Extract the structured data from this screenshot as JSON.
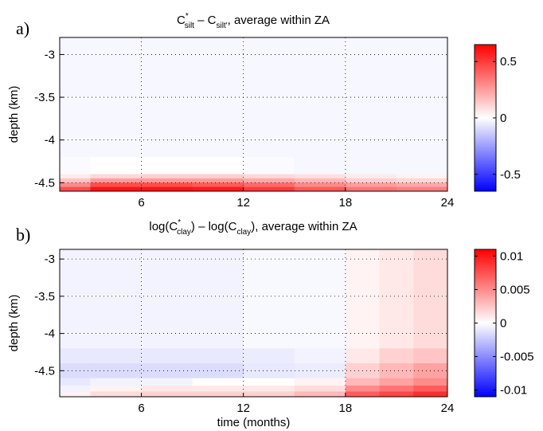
{
  "chart_data": [
    {
      "type": "heatmap",
      "label": "a)",
      "title_parts": [
        "C",
        "*",
        "silt",
        " – C",
        "silt'",
        ", average within ZA"
      ],
      "ylabel": "depth (km)",
      "xlim": [
        1.2,
        24
      ],
      "ylim": [
        -4.6,
        -2.8
      ],
      "xticks": [
        6,
        12,
        18,
        24
      ],
      "yticks": [
        -3,
        -3.5,
        -4,
        -4.5
      ],
      "grid": true,
      "x_edges": [
        1.2,
        3,
        6,
        9,
        12,
        15,
        18,
        21,
        24
      ],
      "y_edges": [
        -2.8,
        -4.2,
        -4.4,
        -4.45,
        -4.5,
        -4.55,
        -4.6
      ],
      "z": [
        [
          -0.02,
          -0.02,
          -0.02,
          -0.02,
          -0.02,
          -0.02,
          -0.02,
          -0.02
        ],
        [
          -0.01,
          0,
          0,
          0,
          -0.01,
          -0.02,
          -0.02,
          -0.02
        ],
        [
          0.05,
          0.1,
          0.12,
          0.12,
          0.1,
          0.08,
          0.05,
          0.03
        ],
        [
          0.15,
          0.25,
          0.25,
          0.25,
          0.22,
          0.18,
          0.12,
          0.1
        ],
        [
          0.3,
          0.45,
          0.45,
          0.42,
          0.38,
          0.3,
          0.25,
          0.22
        ],
        [
          0.45,
          0.6,
          0.6,
          0.58,
          0.5,
          0.42,
          0.35,
          0.32
        ]
      ],
      "clim": [
        -0.65,
        0.65
      ],
      "cticks": [
        0.5,
        0,
        -0.5
      ],
      "colormap": [
        "#0000ff",
        "#ffffff",
        "#ff0000"
      ]
    },
    {
      "type": "heatmap",
      "label": "b)",
      "title_parts": [
        "log(C",
        "*",
        "clay",
        ") – log(C",
        "clay",
        "), average within ZA"
      ],
      "ylabel": "depth (km)",
      "xlabel": "time (months)",
      "xlim": [
        1.2,
        24
      ],
      "ylim": [
        -4.85,
        -2.87
      ],
      "xticks": [
        6,
        12,
        18,
        24
      ],
      "yticks": [
        -3,
        -3.5,
        -4,
        -4.5
      ],
      "grid": true,
      "x_edges": [
        1.2,
        3,
        6,
        9,
        12,
        15,
        18,
        20,
        22,
        24
      ],
      "y_edges": [
        -2.87,
        -4.2,
        -4.4,
        -4.6,
        -4.7,
        -4.78,
        -4.85
      ],
      "z": [
        [
          -0.0005,
          -0.0005,
          -0.0005,
          -0.0005,
          -0.0003,
          -0.0003,
          0.0005,
          0.001,
          0.0015
        ],
        [
          -0.001,
          -0.001,
          -0.001,
          -0.001,
          -0.0008,
          -0.0005,
          0.001,
          0.002,
          0.0025
        ],
        [
          -0.0015,
          -0.0015,
          -0.0015,
          -0.0015,
          -0.001,
          -0.0008,
          0.002,
          0.003,
          0.004
        ],
        [
          -0.001,
          -0.0005,
          -0.0005,
          0,
          0,
          0.0005,
          0.003,
          0.004,
          0.005
        ],
        [
          -0.0005,
          0.0005,
          0.001,
          0.001,
          0.001,
          0.0015,
          0.005,
          0.006,
          0.007
        ],
        [
          0.0005,
          0.0015,
          0.002,
          0.002,
          0.002,
          0.003,
          0.007,
          0.008,
          0.009
        ]
      ],
      "clim": [
        -0.011,
        0.011
      ],
      "cticks": [
        0.01,
        0.005,
        0,
        -0.005,
        -0.01
      ],
      "colormap": [
        "#0000ff",
        "#ffffff",
        "#ff0000"
      ]
    }
  ]
}
